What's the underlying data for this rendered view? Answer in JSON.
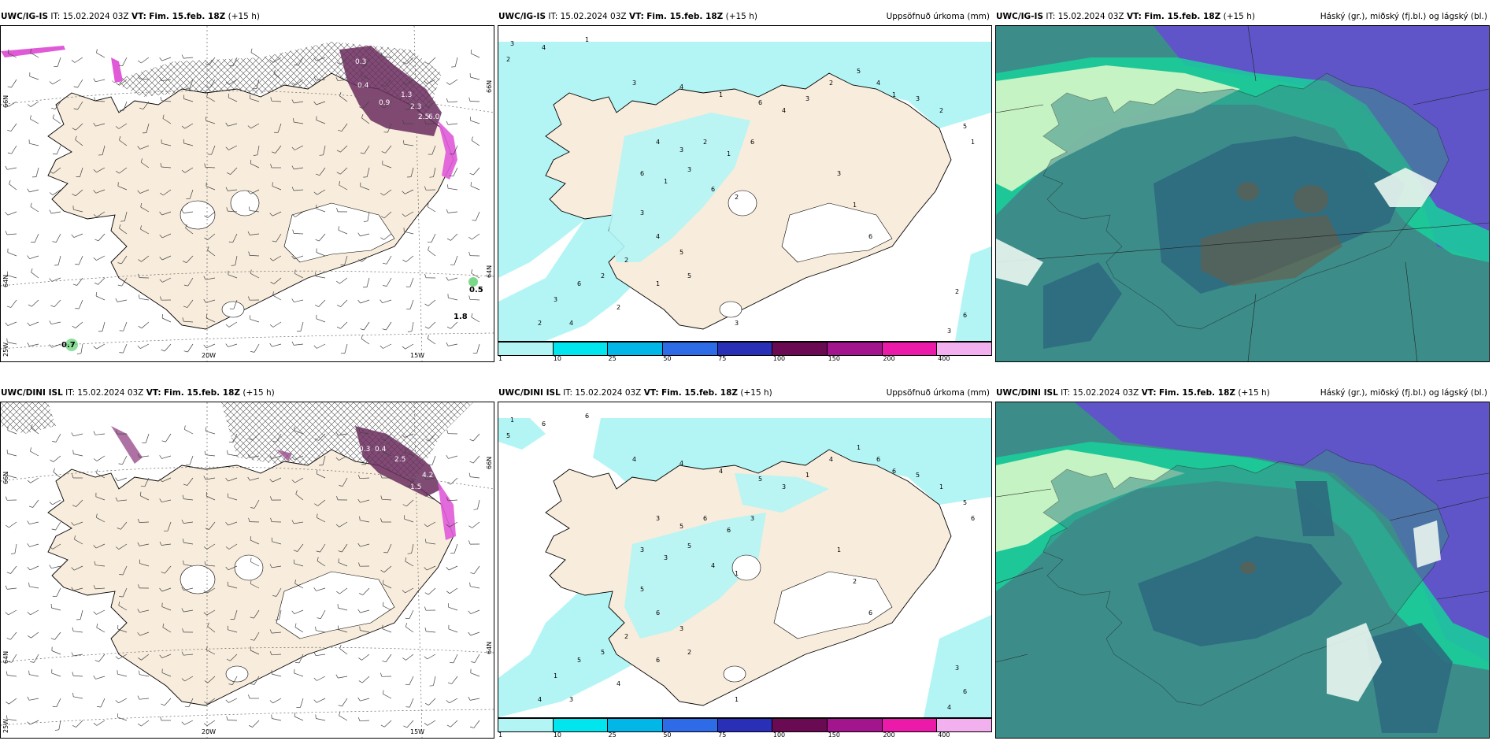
{
  "panels": {
    "p1": {
      "model": "UWC/IG-IS",
      "it": "IT: 15.02.2024 03Z",
      "vt_label": "VT:",
      "vt_value": "Fim. 15.feb. 18Z",
      "lead": "(+15 h)",
      "right": ""
    },
    "p2": {
      "model": "UWC/IG-IS",
      "it": "IT: 15.02.2024 03Z",
      "vt_label": "VT:",
      "vt_value": "Fim. 15.feb. 18Z",
      "lead": "(+15 h)",
      "right": "Uppsöfnuð úrkoma (mm)"
    },
    "p3": {
      "model": "UWC/IG-IS",
      "it": "IT: 15.02.2024 03Z",
      "vt_label": "VT:",
      "vt_value": "Fim. 15.feb. 18Z",
      "lead": "(+15 h)",
      "right": "Háský (gr.), miðský (fj.bl.) og lágský (bl.)"
    },
    "p4": {
      "model": "UWC/DINI ISL",
      "it": "IT: 15.02.2024 03Z",
      "vt_label": "VT:",
      "vt_value": "Fim. 15.feb. 18Z",
      "lead": "(+15 h)",
      "right": ""
    },
    "p5": {
      "model": "UWC/DINI ISL",
      "it": "IT: 15.02.2024 03Z",
      "vt_label": "VT:",
      "vt_value": "Fim. 15.feb. 18Z",
      "lead": "(+15 h)",
      "right": "Uppsöfnuð úrkoma (mm)"
    },
    "p6": {
      "model": "UWC/DINI ISL",
      "it": "IT: 15.02.2024 03Z",
      "vt_label": "VT:",
      "vt_value": "Fim. 15.feb. 18Z",
      "lead": "(+15 h)",
      "right": "Háský (gr.), miðský (fj.bl.) og lágský (bl.)"
    }
  },
  "axes": {
    "lat_66": "66N",
    "lat_64": "64N",
    "lon_20w": "20W",
    "lon_15w": "15W",
    "lon_25w": "25W"
  },
  "precip_colorbar": {
    "labels": [
      "1",
      "10",
      "25",
      "50",
      "75",
      "100",
      "150",
      "200",
      "400"
    ],
    "colors": [
      "#b3f5f5",
      "#00e5ee",
      "#00b7e8",
      "#2e6be6",
      "#2a2fb8",
      "#6a0a52",
      "#a3158c",
      "#ec1aa8",
      "#f3b0ee"
    ]
  },
  "wind_labels": {
    "p1": [
      "0.5",
      "1.8",
      "0.7"
    ],
    "p1_purple": [
      "0.3",
      "0.4",
      "1.3",
      "0.9",
      "2.5",
      "6.0",
      "2.3"
    ],
    "p4_purple": [
      "0.3",
      "0.4",
      "2.5",
      "4.2",
      "1.5"
    ]
  },
  "colors": {
    "land": "#f8ecdc",
    "land_snow": "#ffffff",
    "sea": "#ffffff",
    "precip_light": "#b3f5f5",
    "purple_dark": "#6a2d5e",
    "purple_mid": "#9a4d8c",
    "magenta": "#e05ad8",
    "cloud_blue": "#5f55c9",
    "cloud_teal": "#3c8d8a",
    "cloud_dark": "#2d6a7e",
    "cloud_green": "#18d19a",
    "cloud_pale": "#d8f7c8",
    "cloud_brown": "#6a5a44"
  }
}
